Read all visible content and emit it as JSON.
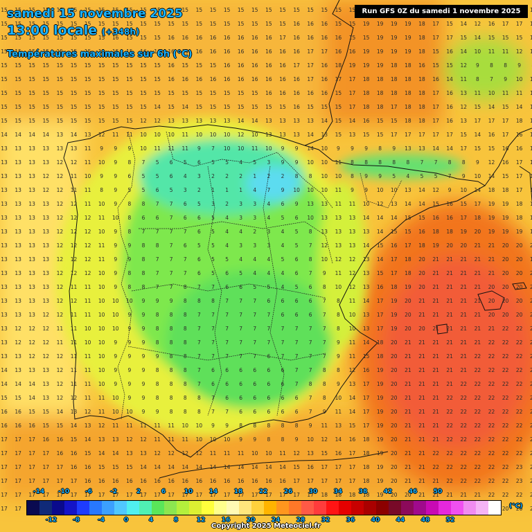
{
  "header": {
    "date": "samedi 15 novembre 2025",
    "time": "13:00 locale",
    "offset": "(+348h)",
    "subtitle": "Températures maximales sur 6h (°C)"
  },
  "run_info": "Run GFS 0Z du samedi 1 novembre 2025",
  "legend": {
    "unit": "(°C)",
    "top_labels": [
      "-14",
      "-10",
      "-6",
      "-2",
      "2",
      "6",
      "10",
      "14",
      "18",
      "22",
      "26",
      "30",
      "34",
      "38",
      "42",
      "46",
      "50"
    ],
    "bottom_labels": [
      "-12",
      "-8",
      "-4",
      "0",
      "4",
      "8",
      "12",
      "16",
      "20",
      "24",
      "28",
      "32",
      "36",
      "40",
      "44",
      "48",
      "52"
    ],
    "colors": [
      "#0a0a50",
      "#102a78",
      "#0a0a8c",
      "#1414c8",
      "#1e3cff",
      "#2878ff",
      "#3ca0ff",
      "#50c8ff",
      "#50f0f0",
      "#50f0b4",
      "#5ae65a",
      "#8ce650",
      "#b4f03c",
      "#dcf032",
      "#ffff3c",
      "#ffff8c",
      "#fffab4",
      "#ffe67d",
      "#ffd23c",
      "#ffb400",
      "#ff961e",
      "#ff7828",
      "#ff5a46",
      "#ff3c3c",
      "#ff1414",
      "#e60000",
      "#c80000",
      "#aa0000",
      "#8c0000",
      "#780a28",
      "#8c0a5a",
      "#a00a8c",
      "#c80ab4",
      "#e628dc",
      "#f050f0",
      "#f08cf0",
      "#f5b4f5",
      "#ffffff"
    ]
  },
  "copyright": "Copyright 2025 Meteociel.fr",
  "map": {
    "grid_rows": [
      "15 15 15 15 15 15 15 15 15 15 15 15 15 15 15 15 15 15 15 15 15 15 15 15 15 15 18 19 19 19 19 19 19 18 17 17 17 17 17",
      "15 15 15 15 15 15 15 15 15 15 15 15 15 15 15 15 15 15 15 15 15 16 16 16 15 15 19 19 19 19 18 17 15 14 12 16 17 17 17",
      "15 15 15 15 15 15 15 15 16 15 15 15 16 16 16 16 16 16 16 16 17 16 16 16 16 15 15 19 19 19 18 17 17 15 14 15 15 15 16",
      "15 15 15 15 15 15 15 15 15 15 16 16 16 16 16 16 16 16 16 16 16 16 17 17 16 16 19 19 19 19 18 15 16 14 10 11 11 12 12",
      "15 15 15 15 15 15 15 15 15 15 15 15 16 15 15 15 16 16 16 16 16 17 17 16 18 19 19 19 18 18 16 15 15 12 9 8 8 9 8",
      "15 15 15 15 15 15 15 15 15 15 15 15 16 16 16 16 16 16 16 16 16 16 17 16 17 17 18 18 18 18 18 16 14 11 8 7 9 10 11",
      "15 15 15 15 15 15 15 15 15 15 15 15 15 15 15 15 15 15 15 16 16 16 16 16 15 17 18 18 18 18 18 17 16 13 11 10 11 11 12",
      "15 15 15 15 15 15 15 15 15 15 15 14 15 14 15 15 15 15 15 15 15 16 15 15 15 17 18 18 17 18 18 17 16 12 15 14 15 14 15",
      "15 15 15 15 15 15 15 15 15 15 12 12 13 13 13 13 13 14 14 13 13 13 13 14 15 14 16 15 15 18 18 17 16 13 17 17 17 18 19",
      "14 14 14 14 13 14 13 12 11 11 10 10 10 11 10 10 10 12 10 13 13 13 14 13 15 13 15 15 17 17 17 17 17 15 14 16 17 16 15",
      "13 13 13 13 13 13 11 9 9 9 10 11 11 11 9 7 10 10 11 10 9 9 14 10 9 9 9 8 9 13 13 14 14 17 15 15 16 16 17",
      "13 13 13 13 12 12 11 10 9 8 7 5 6 5 6 5 5 4 5 3 9 9 10 10 11 8 8 8 8 8 7 7 8 8 9 12 16 17 17",
      "13 13 13 12 12 11 10 9 9 6 5 5 6 4 3 2 2 2 1 2 2 8 8 10 10 8 9 9 5 4 5 5 7 9 10 14 15 17 17",
      "13 13 13 12 12 11 11 8 9 5 5 6 5 3 2 1 1 1 4 7 9 10 10 10 11 9 9 10 10 13 14 12 9 10 14 18 18 17 17",
      "13 13 13 13 12 12 11 10 9 8 8 7 7 6 5 3 2 3 3 4 6 9 13 13 11 11 10 12 13 14 14 15 16 15 17 19 19 18 17",
      "13 13 13 13 12 12 12 11 10 8 6 6 7 6 6 5 4 3 3 4 5 6 10 13 13 13 14 14 14 15 15 16 16 17 18 19 19 18 18",
      "13 13 13 13 12 12 12 10 9 8 7 7 7 7 6 5 4 4 2 3 4 5 8 13 13 13 13 14 15 15 16 18 18 19 20 19 19 19 18",
      "13 13 13 13 12 12 12 11 9 9 8 8 7 6 5 5 4 3 3 3 4 5 7 12 13 13 14 15 16 17 18 19 20 20 21 21 20 20 20",
      "13 13 13 13 12 12 12 11 9 9 8 7 7 7 6 5 5 4 4 4 5 6 8 10 12 12 13 14 17 18 20 21 21 21 21 21 20 20 19",
      "13 13 13 13 12 12 12 10 9 8 8 7 7 7 6 5 6 5 4 4 4 6 7 9 11 12 13 15 17 18 20 21 21 21 21 21 20 20 20",
      "13 13 13 13 12 11 11 10 9 8 8 7 7 8 7 7 6 6 5 5 4 5 6 8 10 12 13 16 18 19 20 21 21 21 21 20 20 20 20",
      "13 13 13 13 12 12 11 10 10 10 9 9 9 8 8 8 7 7 7 6 6 6 6 7 8 11 14 17 19 20 21 21 21 21 21 20 20 20 20",
      "13 13 13 12 12 11 11 10 10 9 9 8 8 8 7 7 7 7 7 7 6 6 6 7 8 10 13 17 19 20 21 21 21 21 21 20 20 20 20",
      "13 12 12 12 11 11 10 10 10 9 9 8 8 8 7 7 7 7 7 7 7 7 7 7 8 10 13 17 19 20 20 21 21 21 21 21 22 22 22",
      "13 12 12 12 11 11 10 10 9 9 9 8 8 8 7 7 7 7 7 7 7 7 7 7 9 11 14 18 20 21 21 21 21 21 21 22 22 22 22",
      "13 13 12 12 12 11 11 10 9 9 9 9 8 8 7 7 7 7 7 6 7 7 7 7 9 11 15 18 20 21 21 21 21 21 22 22 22 22 22",
      "14 13 13 13 12 11 11 10 9 9 9 8 8 8 7 6 6 6 6 6 6 7 7 8 8 12 16 19 20 21 21 21 21 21 22 22 22 22 22",
      "14 14 14 13 12 11 11 10 9 9 9 8 8 8 7 6 6 6 6 6 6 7 8 8 9 13 17 19 20 21 21 21 21 22 22 22 22 22 22",
      "15 15 14 13 12 12 11 11 10 9 9 8 8 8 8 7 6 6 6 6 6 6 7 8 10 14 17 19 20 21 21 21 22 22 22 22 22 22 22",
      "16 16 15 15 14 13 12 11 10 10 9 9 8 8 8 7 7 6 6 6 6 6 7 9 11 14 17 19 20 21 21 21 22 22 22 22 22 22 22",
      "16 16 16 15 15 14 13 12 11 11 11 11 11 10 10 9 9 8 8 8 8 8 9 11 13 15 17 19 20 21 21 21 22 22 22 22 22 22 22",
      "17 17 17 16 16 15 14 13 13 12 12 11 11 11 10 10 10 9 9 8 8 9 10 12 14 16 18 19 20 21 21 21 22 22 22 22 22 22 22",
      "17 17 17 17 16 16 15 14 14 13 13 12 12 12 12 11 11 11 10 10 11 12 13 15 16 17 18 19 20 21 21 22 22 22 22 22 22 22 23",
      "17 17 17 17 17 16 16 15 15 15 14 14 14 14 14 14 14 14 14 14 14 15 16 17 17 17 18 19 20 21 21 22 22 22 22 22 22 23 23",
      "17 17 17 17 17 17 16 16 16 16 16 16 16 16 16 16 16 16 16 16 16 17 17 17 17 17 18 19 20 21 21 21 22 22 22 22 22 23 23",
      "17 17 17 17 17 17 17 17 17 17 17 17 17 17 17 17 17 17 17 17 17 17 17 18 18 18 18 19 20 20 21 21 21 21 21 22 22 22 22",
      "17 17 17 17 17 17 17 17 17 17 17 17 17 17 17 17 17 17 17 17 17 17 17 18 18 18 18 18 19 20 20 20 20 20 20 20 20 20 21",
      "18 18 17 17 17 17 17 17 17 17 17 17 17 17 17 17 17 17 17 17 17 17 17 17 18 18 18 18 19 19 19 19 19 19 19 19 19 19 20",
      "18 18 17 17 17 17 17 17 17 17 17 17 17 17 17 17 17 17 17 17 17 17 17 17 17 18 18 18 18 18 18 18 18 18 18 18 18 18 18"
    ]
  }
}
